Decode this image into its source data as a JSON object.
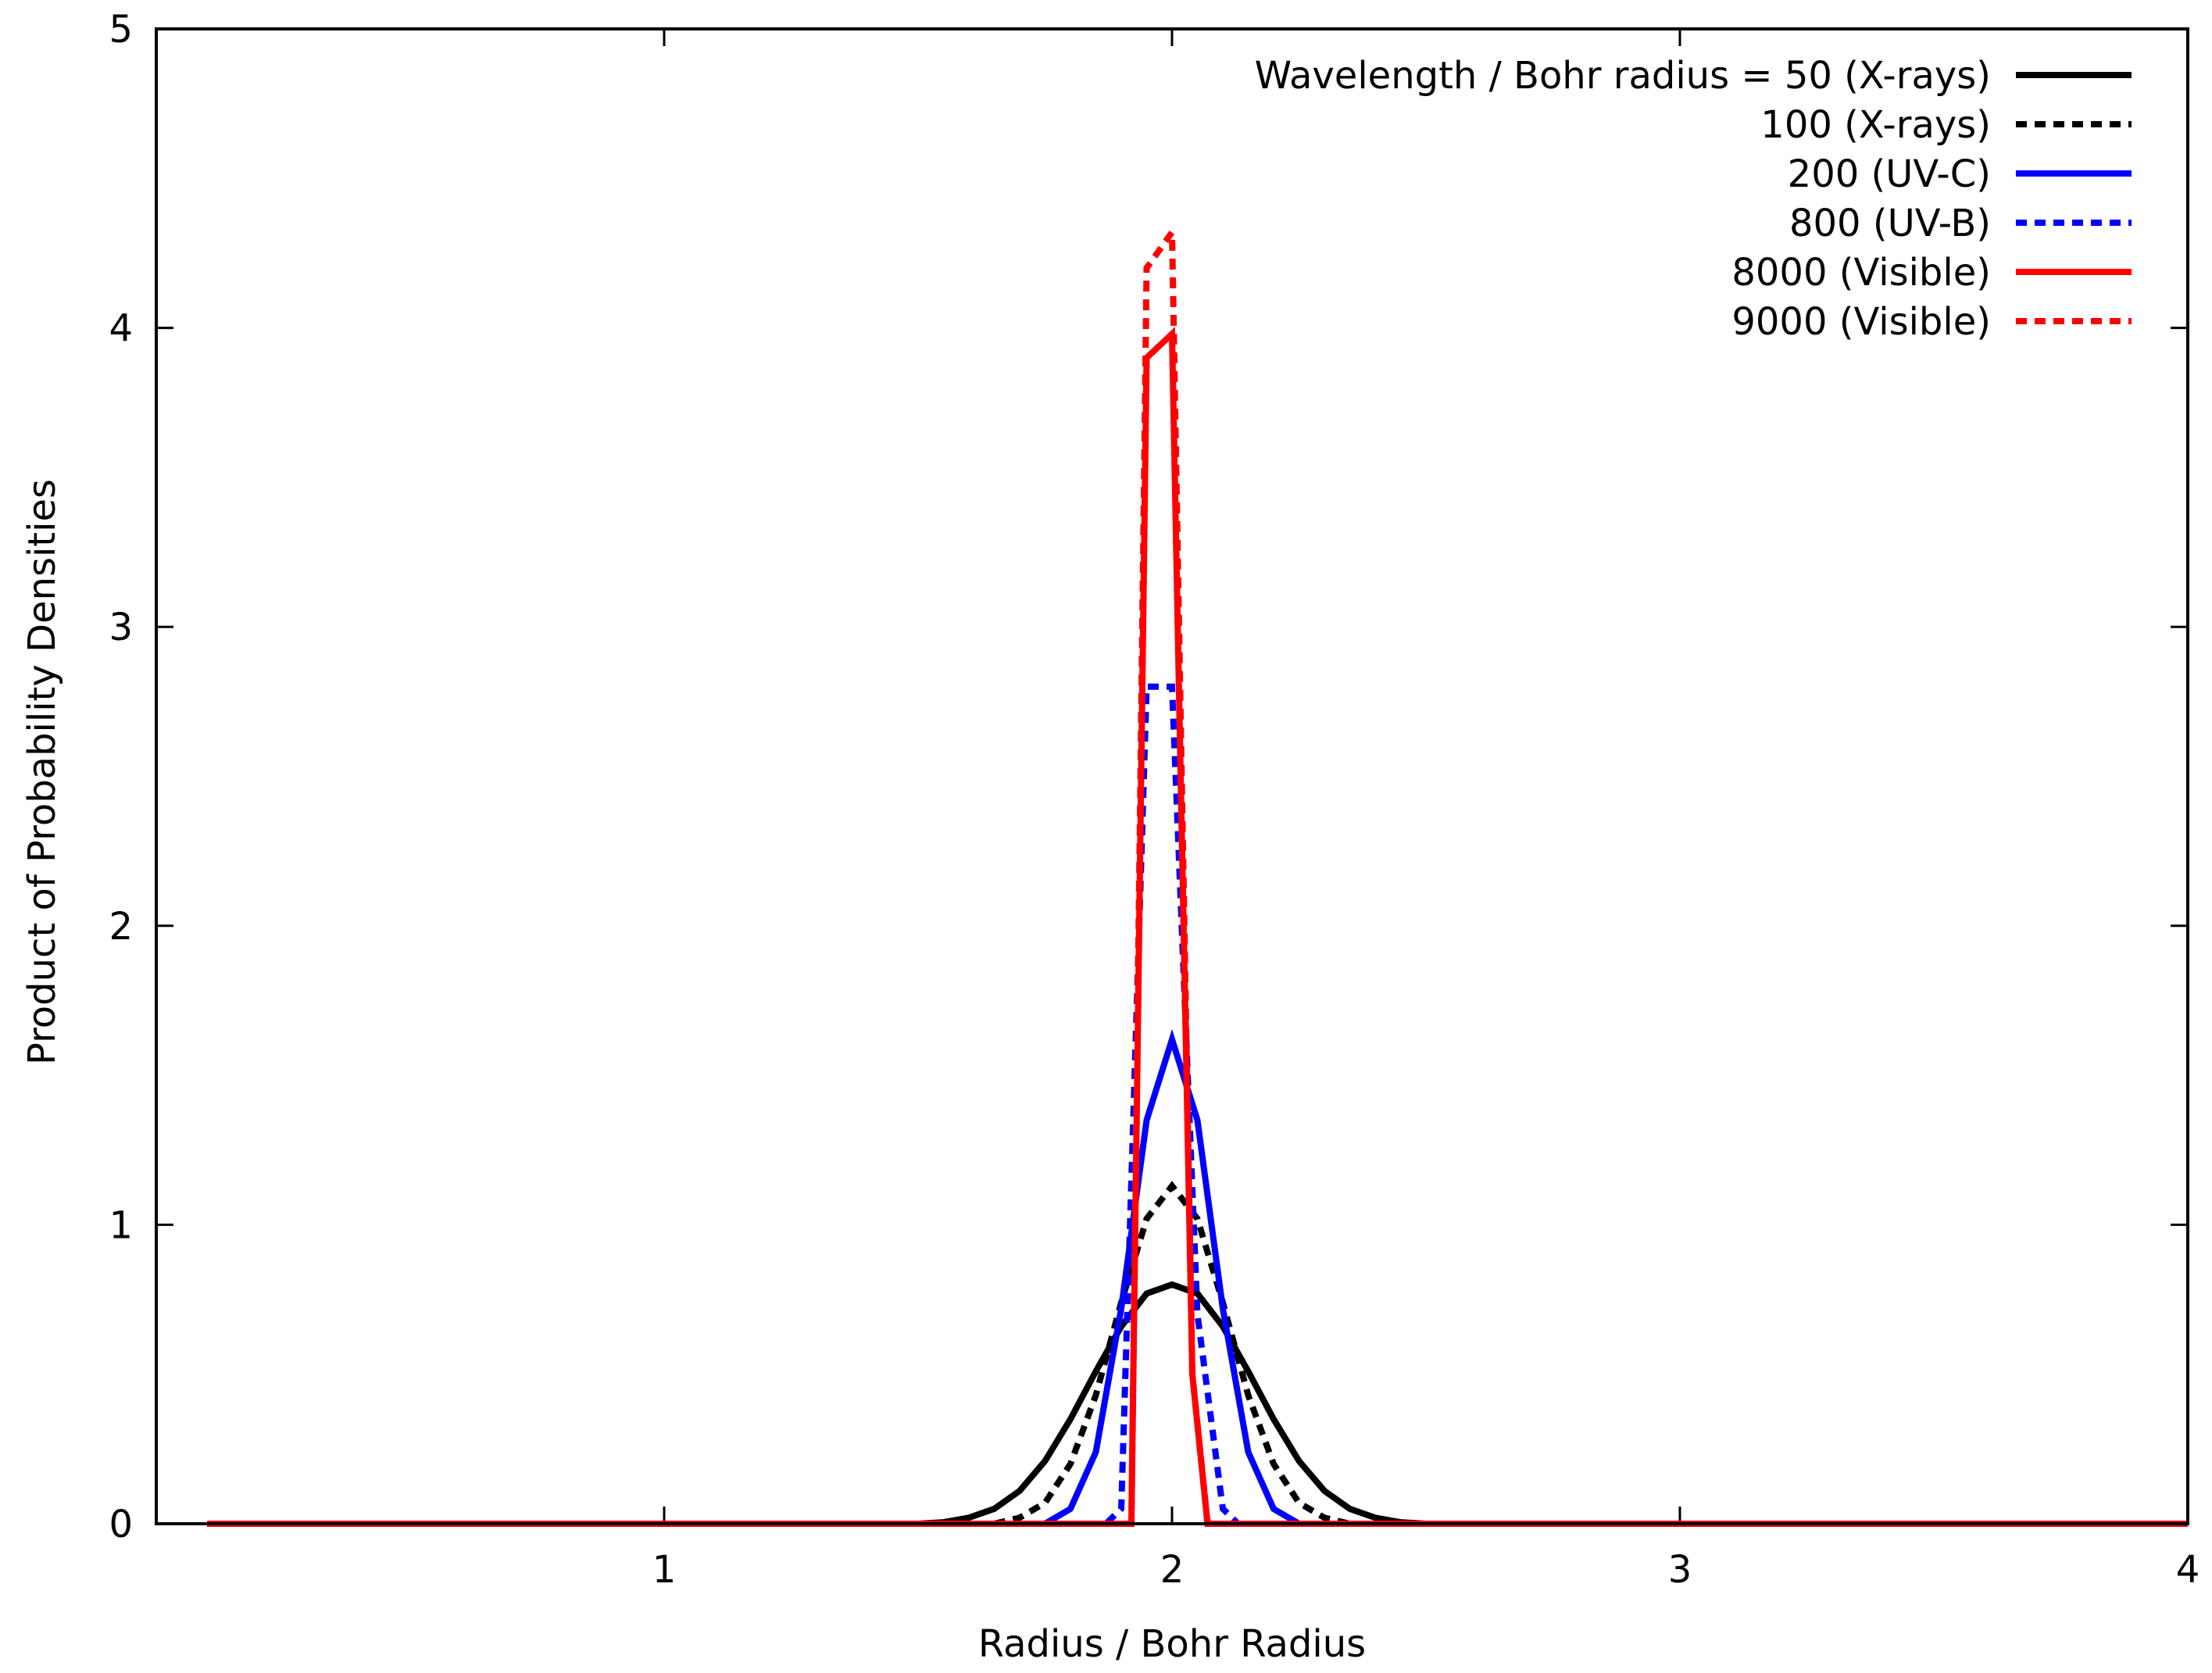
{
  "chart_data": {
    "type": "line",
    "title": "",
    "xlabel": "Radius / Bohr Radius",
    "ylabel": "Product of Probability Densities",
    "xlim": [
      0,
      4
    ],
    "ylim": [
      0,
      5
    ],
    "xticks": [
      1,
      2,
      3,
      4
    ],
    "yticks": [
      0,
      1,
      2,
      3,
      4,
      5
    ],
    "xtick_labels": [
      "1",
      "2",
      "3",
      "4"
    ],
    "ytick_labels": [
      "0",
      "1",
      "2",
      "3",
      "4",
      "5"
    ],
    "grid": false,
    "legend_position": "top-right",
    "series": [
      {
        "name": "Wavelength / Bohr radius = 50 (X-rays)",
        "color": "#000000",
        "dash": "solid",
        "x": [
          0.1,
          1.5,
          1.55,
          1.6,
          1.65,
          1.7,
          1.75,
          1.8,
          1.85,
          1.9,
          1.95,
          2.0,
          2.05,
          2.1,
          2.15,
          2.2,
          2.25,
          2.3,
          2.35,
          2.4,
          2.45,
          2.5,
          4.0
        ],
        "y": [
          0,
          0,
          0.005,
          0.02,
          0.05,
          0.11,
          0.21,
          0.35,
          0.51,
          0.66,
          0.77,
          0.8,
          0.77,
          0.66,
          0.51,
          0.35,
          0.21,
          0.11,
          0.05,
          0.02,
          0.005,
          0,
          0
        ]
      },
      {
        "name": "100 (X-rays)",
        "color": "#000000",
        "dash": "dashed",
        "x": [
          0.1,
          1.65,
          1.7,
          1.75,
          1.8,
          1.85,
          1.9,
          1.95,
          2.0,
          2.05,
          2.1,
          2.15,
          2.2,
          2.25,
          2.3,
          2.35,
          4.0
        ],
        "y": [
          0,
          0,
          0.02,
          0.07,
          0.2,
          0.43,
          0.74,
          1.02,
          1.13,
          1.02,
          0.74,
          0.43,
          0.2,
          0.07,
          0.02,
          0,
          0
        ]
      },
      {
        "name": "200 (UV-C)",
        "color": "#0000ff",
        "dash": "solid",
        "x": [
          0.1,
          1.75,
          1.8,
          1.85,
          1.9,
          1.95,
          2.0,
          2.05,
          2.1,
          2.15,
          2.2,
          2.25,
          4.0
        ],
        "y": [
          0,
          0,
          0.05,
          0.24,
          0.72,
          1.35,
          1.62,
          1.35,
          0.72,
          0.24,
          0.05,
          0,
          0
        ]
      },
      {
        "name": "800 (UV-B)",
        "color": "#0000ff",
        "dash": "dashed",
        "x": [
          0.1,
          1.87,
          1.9,
          1.95,
          2.0,
          2.05,
          2.1,
          2.13,
          4.0
        ],
        "y": [
          0,
          0,
          0.05,
          2.8,
          2.8,
          0.7,
          0.05,
          0,
          0
        ]
      },
      {
        "name": "8000 (Visible)",
        "color": "#ff0000",
        "dash": "solid",
        "x": [
          0.1,
          1.92,
          1.95,
          2.0,
          2.04,
          2.07,
          4.0
        ],
        "y": [
          0,
          0,
          3.9,
          3.98,
          0.5,
          0,
          0
        ]
      },
      {
        "name": "9000 (Visible)",
        "color": "#ff0000",
        "dash": "dashed",
        "x": [
          0.1,
          1.92,
          1.95,
          2.0,
          2.04,
          2.07,
          4.0
        ],
        "y": [
          0,
          0,
          4.2,
          4.32,
          0.5,
          0,
          0
        ]
      }
    ]
  }
}
